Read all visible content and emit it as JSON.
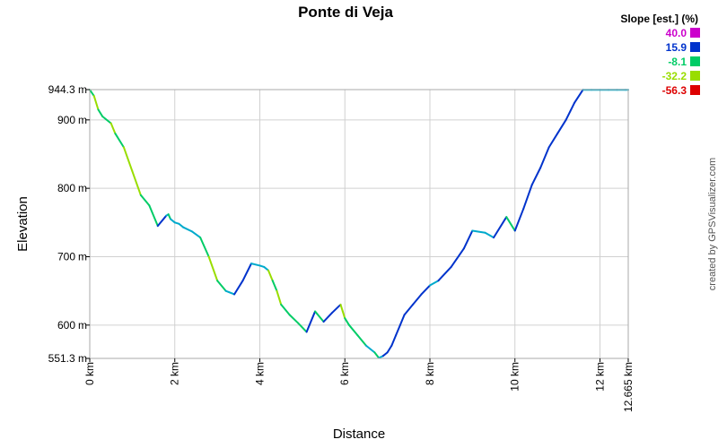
{
  "chart_data": {
    "type": "line",
    "title": "Ponte di Veja",
    "xlabel": "Distance",
    "ylabel": "Elevation",
    "xlim": [
      0,
      12.665
    ],
    "ylim": [
      551.3,
      944.3
    ],
    "grid": true,
    "x_ticks": [
      0,
      2,
      4,
      6,
      8,
      10,
      12,
      12.665
    ],
    "x_tick_labels": [
      "0 km",
      "2 km",
      "4 km",
      "6 km",
      "8 km",
      "10 km",
      "12 km",
      "12.665 km"
    ],
    "y_ticks": [
      551.3,
      600,
      700,
      800,
      900,
      944.3
    ],
    "y_tick_labels": [
      "551.3 m",
      "600",
      "700",
      "800",
      "900",
      "944.3 m"
    ],
    "y_tick_units": [
      "",
      "m",
      "m",
      "m",
      "m",
      ""
    ],
    "legend": {
      "title": "Slope [est.] (%)",
      "placement": "top-right",
      "entries": [
        {
          "label": "40.0",
          "color": "#cc00cc"
        },
        {
          "label": "15.9",
          "color": "#0033cc"
        },
        {
          "label": "-8.1",
          "color": "#00cc66"
        },
        {
          "label": "-32.2",
          "color": "#99dd00"
        },
        {
          "label": "-56.3",
          "color": "#dd0000"
        }
      ]
    },
    "series": [
      {
        "x": [
          0,
          0.1,
          0.2,
          0.3,
          0.5,
          0.6,
          0.8,
          1.0,
          1.2,
          1.4,
          1.6,
          1.8,
          1.85,
          1.9,
          2.0,
          2.1,
          2.2,
          2.4,
          2.6,
          2.8,
          3.0,
          3.2,
          3.4,
          3.6,
          3.8,
          4.0,
          4.1,
          4.2,
          4.3,
          4.4,
          4.5,
          4.7,
          4.9,
          5.1,
          5.3,
          5.5,
          5.7,
          5.9,
          5.95,
          6.0,
          6.1,
          6.3,
          6.5,
          6.7,
          6.8,
          6.9,
          7.0,
          7.1,
          7.2,
          7.3,
          7.4,
          7.6,
          7.8,
          8.0,
          8.2,
          8.5,
          8.8,
          9.0,
          9.3,
          9.5,
          9.8,
          10.0,
          10.2,
          10.4,
          10.6,
          10.8,
          11.0,
          11.2,
          11.4,
          11.6,
          11.8,
          12.0,
          12.2,
          12.4,
          12.6,
          12.665
        ],
        "y": [
          944,
          935,
          915,
          905,
          895,
          880,
          860,
          825,
          790,
          775,
          745,
          760,
          762,
          755,
          750,
          748,
          743,
          737,
          728,
          700,
          665,
          650,
          645,
          665,
          690,
          687,
          685,
          680,
          665,
          650,
          630,
          615,
          603,
          590,
          620,
          605,
          618,
          630,
          620,
          610,
          600,
          585,
          570,
          560,
          552,
          555,
          560,
          570,
          585,
          600,
          615,
          630,
          645,
          658,
          665,
          685,
          712,
          738,
          735,
          728,
          758,
          738,
          770,
          805,
          830,
          860,
          880,
          900,
          925,
          944,
          944,
          944,
          944,
          944,
          944,
          944
        ]
      }
    ]
  },
  "credit": "created by GPSVisualizer.com"
}
